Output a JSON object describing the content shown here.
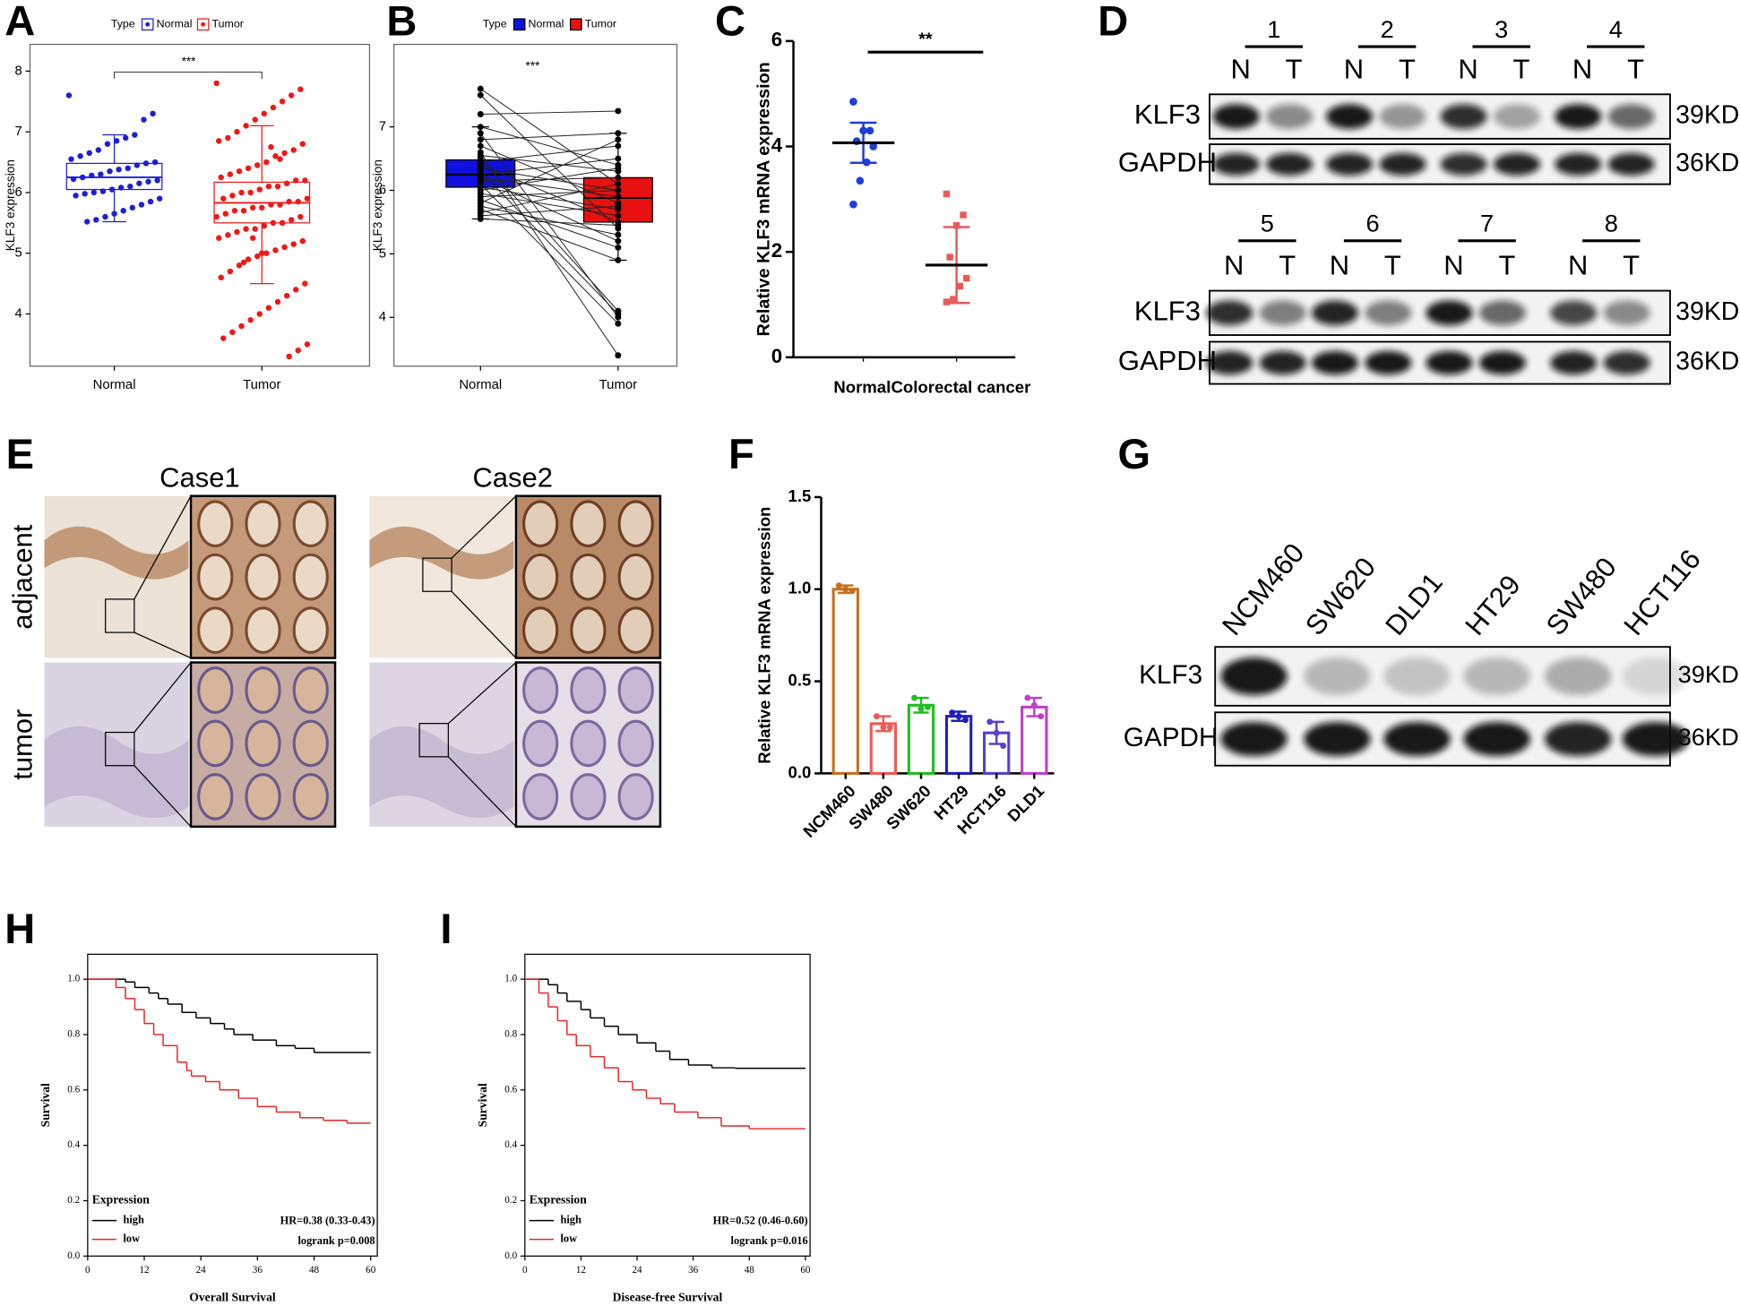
{
  "chart_data": [
    {
      "type": "box_jitter",
      "panel_label": "A",
      "legend_title": "Type",
      "ylabel": "KLF3 expression",
      "annotation": "***",
      "categories": [
        "Normal",
        "Tumor"
      ],
      "ylim": [
        3.14,
        8.44
      ],
      "yticks": [
        4,
        5,
        6,
        7,
        8
      ],
      "series": [
        {
          "name": "Normal",
          "color": "#1f1fd6",
          "box": {
            "whisker_low": 5.52,
            "q1": 6.05,
            "median": 6.25,
            "q3": 6.48,
            "whisker_high": 6.95
          },
          "values": [
            7.6,
            7.3,
            7.2,
            6.95,
            6.9,
            6.85,
            6.8,
            6.7,
            6.65,
            6.6,
            6.55,
            6.5,
            6.48,
            6.45,
            6.4,
            6.38,
            6.35,
            6.3,
            6.28,
            6.25,
            6.22,
            6.2,
            6.18,
            6.15,
            6.1,
            6.08,
            6.05,
            6.02,
            6.0,
            5.98,
            5.95,
            5.9,
            5.85,
            5.8,
            5.75,
            5.7,
            5.65,
            5.6,
            5.55,
            5.52
          ]
        },
        {
          "name": "Tumor",
          "color": "#f01818",
          "box": {
            "whisker_low": 4.5,
            "q1": 5.5,
            "median": 5.83,
            "q3": 6.17,
            "whisker_high": 7.1
          },
          "values": [
            7.8,
            7.7,
            7.6,
            7.5,
            7.4,
            7.3,
            7.2,
            7.1,
            7.0,
            6.9,
            6.85,
            6.8,
            6.7,
            6.65,
            6.6,
            6.5,
            6.45,
            6.4,
            6.35,
            6.3,
            6.25,
            6.2,
            6.2,
            6.15,
            6.1,
            6.1,
            6.05,
            6.0,
            6.0,
            5.95,
            5.9,
            5.9,
            5.85,
            5.85,
            5.8,
            5.8,
            5.75,
            5.75,
            5.7,
            5.7,
            5.65,
            5.6,
            5.6,
            5.55,
            5.5,
            5.5,
            5.45,
            5.4,
            5.4,
            5.35,
            5.3,
            5.25,
            5.2,
            5.15,
            5.1,
            5.05,
            5.0,
            4.95,
            4.9,
            4.8,
            4.7,
            4.6,
            4.5,
            4.4,
            4.3,
            4.2,
            4.1,
            4.0,
            3.9,
            3.8,
            3.7,
            3.6,
            3.5,
            3.4,
            3.3,
            6.55,
            6.75,
            5.0,
            5.25,
            4.85
          ]
        }
      ]
    },
    {
      "type": "paired_box",
      "panel_label": "B",
      "legend_title": "Type",
      "ylabel": "KLF3 expression",
      "annotation": "***",
      "categories": [
        "Normal",
        "Tumor"
      ],
      "ylim": [
        3.23,
        8.3
      ],
      "yticks": [
        4,
        5,
        6,
        7
      ],
      "series": [
        {
          "name": "Normal",
          "color": "#1010e0",
          "box": {
            "whisker_low": 5.55,
            "q1": 6.05,
            "median": 6.25,
            "q3": 6.48,
            "whisker_high": 7.0
          },
          "values": [
            7.6,
            7.5,
            7.2,
            7.0,
            6.9,
            6.8,
            6.7,
            6.6,
            6.55,
            6.5,
            6.45,
            6.4,
            6.35,
            6.3,
            6.25,
            6.2,
            6.2,
            6.15,
            6.1,
            6.05,
            6.0,
            5.95,
            5.9,
            5.85,
            5.8,
            5.75,
            5.7,
            5.65,
            5.6,
            5.55
          ]
        },
        {
          "name": "Tumor",
          "color": "#e81010",
          "box": {
            "whisker_low": 4.9,
            "q1": 5.5,
            "median": 5.88,
            "q3": 6.2,
            "whisker_high": 6.9
          },
          "values": [
            6.1,
            5.4,
            7.25,
            6.4,
            4.0,
            6.9,
            5.8,
            3.4,
            6.3,
            4.1,
            6.7,
            5.5,
            6.0,
            4.05,
            6.5,
            5.9,
            5.2,
            6.2,
            3.9,
            5.7,
            6.35,
            5.6,
            6.0,
            5.1,
            6.8,
            5.3,
            4.9,
            6.1,
            5.75,
            5.45
          ]
        }
      ]
    },
    {
      "type": "scatter_sd",
      "panel_label": "C",
      "ylabel": "Relative KLF3 mRNA expression",
      "annotation": "**",
      "categories": [
        "Normal",
        "Colorectal cancer"
      ],
      "ylim": [
        0,
        6
      ],
      "yticks": [
        0,
        2,
        4,
        6
      ],
      "series": [
        {
          "color": "#1f3fd6",
          "mean": 4.07,
          "sd": 0.38,
          "values": [
            4.85,
            4.3,
            4.3,
            4.1,
            4.0,
            3.7,
            3.35,
            2.9
          ]
        },
        {
          "color": "#e85a5a",
          "mean": 1.75,
          "sd": 0.72,
          "values": [
            3.1,
            2.7,
            2.5,
            1.9,
            1.5,
            1.35,
            1.1,
            1.05
          ]
        }
      ]
    },
    {
      "type": "bar_error",
      "panel_label": "F",
      "ylabel": "Relative KLF3 mRNA expression",
      "categories": [
        "NCM460",
        "SW480",
        "SW620",
        "HT29",
        "HCT116",
        "DLD1"
      ],
      "values": [
        1.0,
        0.27,
        0.37,
        0.31,
        0.22,
        0.36
      ],
      "errors": [
        0.02,
        0.04,
        0.04,
        0.025,
        0.06,
        0.05
      ],
      "points": [
        [
          1.02,
          1.0,
          0.99
        ],
        [
          0.31,
          0.25,
          0.25
        ],
        [
          0.41,
          0.35,
          0.36
        ],
        [
          0.33,
          0.31,
          0.29
        ],
        [
          0.28,
          0.22,
          0.15
        ],
        [
          0.41,
          0.37,
          0.31
        ]
      ],
      "colors": [
        "#c8701e",
        "#f05a5a",
        "#1fbf1f",
        "#1f1fbf",
        "#5a3fc8",
        "#c03fc8"
      ],
      "ylim": [
        0,
        1.5
      ],
      "yticks": [
        {
          "value": 0,
          "label": "0.0"
        },
        0.5,
        {
          "value": 1,
          "label": "1.0"
        },
        1.5
      ]
    },
    {
      "type": "km",
      "panel_label": "H",
      "xlabel": "Overall Survival",
      "ylabel": "Survival",
      "legend_title": "Expression",
      "hr_text": "HR=0.38 (0.33-0.43)",
      "logrank_text": "logrank p=0.008",
      "xlim": [
        0,
        61.4
      ],
      "ylim": [
        0,
        1.09
      ],
      "xticks": [
        0,
        12,
        24,
        36,
        48,
        60
      ],
      "yticks": [
        {
          "value": 0,
          "label": "0.0"
        },
        0.2,
        0.4,
        0.6,
        0.8,
        {
          "value": 1,
          "label": "1.0"
        }
      ],
      "series": [
        {
          "name": "high",
          "color": "#000000",
          "x": [
            0,
            8,
            10,
            13,
            15,
            17,
            20,
            23,
            26,
            29,
            31,
            35,
            40,
            44,
            48,
            60
          ],
          "values": [
            1,
            0.99,
            0.97,
            0.95,
            0.93,
            0.91,
            0.88,
            0.86,
            0.84,
            0.82,
            0.8,
            0.78,
            0.76,
            0.75,
            0.735,
            0.735
          ]
        },
        {
          "name": "low",
          "color": "#e8252a",
          "x": [
            0,
            6,
            8,
            10,
            12,
            14,
            16,
            19,
            21,
            22,
            25,
            28,
            32,
            36,
            40,
            45,
            50,
            55,
            60
          ],
          "values": [
            1,
            0.97,
            0.93,
            0.89,
            0.84,
            0.8,
            0.76,
            0.7,
            0.67,
            0.65,
            0.63,
            0.6,
            0.57,
            0.54,
            0.52,
            0.5,
            0.49,
            0.48,
            0.48
          ]
        }
      ]
    },
    {
      "type": "km",
      "panel_label": "I",
      "xlabel": "Disease-free Survival",
      "ylabel": "Survival",
      "legend_title": "Expression",
      "hr_text": "HR=0.52 (0.46-0.60)",
      "logrank_text": "logrank p=0.016",
      "xlim": [
        0,
        61
      ],
      "ylim": [
        0,
        1.09
      ],
      "xticks": [
        0,
        12,
        24,
        36,
        48,
        60
      ],
      "yticks": [
        {
          "value": 0,
          "label": "0.0"
        },
        0.2,
        0.4,
        0.6,
        0.8,
        {
          "value": 1,
          "label": "1.0"
        }
      ],
      "series": [
        {
          "name": "high",
          "color": "#000000",
          "x": [
            0,
            5,
            7,
            9,
            12,
            14,
            17,
            20,
            24,
            28,
            31,
            35,
            40,
            45,
            60
          ],
          "values": [
            1,
            0.98,
            0.95,
            0.92,
            0.89,
            0.86,
            0.83,
            0.8,
            0.77,
            0.74,
            0.71,
            0.69,
            0.68,
            0.678,
            0.678
          ]
        },
        {
          "name": "low",
          "color": "#e8252a",
          "x": [
            0,
            3,
            5,
            7,
            9,
            11,
            14,
            17,
            20,
            23,
            26,
            29,
            32,
            37,
            42,
            48,
            52,
            60
          ],
          "values": [
            1,
            0.95,
            0.9,
            0.85,
            0.8,
            0.76,
            0.72,
            0.68,
            0.63,
            0.6,
            0.57,
            0.55,
            0.52,
            0.5,
            0.47,
            0.46,
            0.46,
            0.46
          ]
        }
      ]
    }
  ],
  "blot_d": {
    "panel_label": "D",
    "blocks": [
      {
        "pairs": [
          {
            "number": "1",
            "lanes": [
              "N",
              "T"
            ]
          },
          {
            "number": "2",
            "lanes": [
              "N",
              "T"
            ]
          },
          {
            "number": "3",
            "lanes": [
              "N",
              "T"
            ]
          },
          {
            "number": "4",
            "lanes": [
              "N",
              "T"
            ]
          }
        ],
        "rows": [
          "KLF3",
          "GAPDH"
        ],
        "sizes": [
          "39KD",
          "36KD"
        ]
      },
      {
        "pairs": [
          {
            "number": "5",
            "lanes": [
              "N",
              "T"
            ]
          },
          {
            "number": "6",
            "lanes": [
              "N",
              "T"
            ]
          },
          {
            "number": "7",
            "lanes": [
              "N",
              "T"
            ]
          },
          {
            "number": "8",
            "lanes": [
              "N",
              "T"
            ]
          }
        ],
        "rows": [
          "KLF3",
          "GAPDH"
        ],
        "sizes": [
          "39KD",
          "36KD"
        ]
      }
    ]
  },
  "ihc": {
    "panel_label": "E",
    "cases": [
      "Case1",
      "Case2"
    ],
    "rows": [
      "adjacent",
      "tumor"
    ]
  },
  "blot_g": {
    "panel_label": "G",
    "lanes": [
      "NCM460",
      "SW620",
      "DLD1",
      "HT29",
      "SW480",
      "HCT116"
    ],
    "rows": [
      "KLF3",
      "GAPDH"
    ],
    "sizes": [
      "39KD",
      "36KD"
    ]
  }
}
